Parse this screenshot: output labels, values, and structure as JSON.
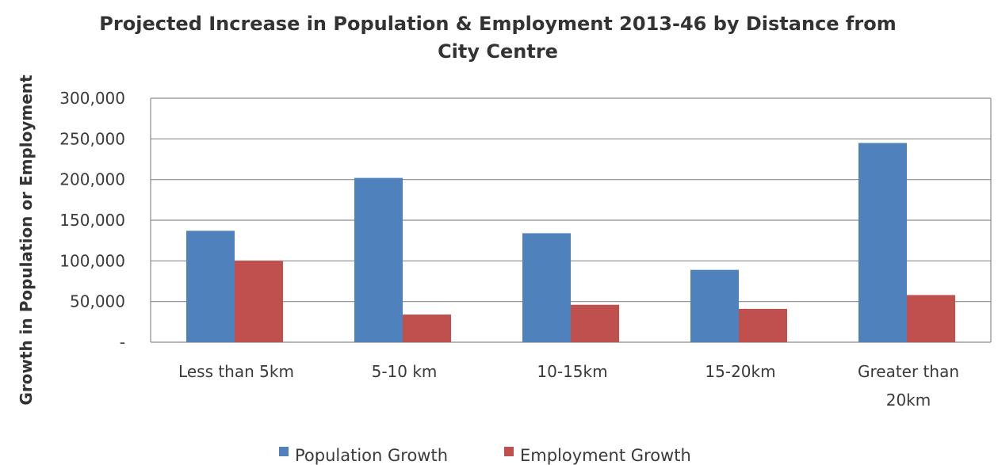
{
  "chart_data": {
    "type": "bar",
    "title": [
      "Projected Increase in Population & Employment 2013-46 by Distance from",
      "City Centre"
    ],
    "xlabel": "",
    "ylabel": "Growth in Population or Employment",
    "categories": [
      [
        "Less than 5km"
      ],
      [
        "5-10 km"
      ],
      [
        "10-15km"
      ],
      [
        "15-20km"
      ],
      [
        "Greater than",
        "20km"
      ]
    ],
    "series": [
      {
        "name": "Population Growth",
        "color": "#4f81bd",
        "values": [
          137000,
          202000,
          134000,
          89000,
          245000
        ]
      },
      {
        "name": "Employment Growth",
        "color": "#c0504d",
        "values": [
          100000,
          34000,
          46000,
          41000,
          58000
        ]
      }
    ],
    "ylim": [
      0,
      300000
    ],
    "yticks": [
      {
        "value": 0,
        "label": "-"
      },
      {
        "value": 50000,
        "label": "50,000"
      },
      {
        "value": 100000,
        "label": "100,000"
      },
      {
        "value": 150000,
        "label": "150,000"
      },
      {
        "value": 200000,
        "label": "200,000"
      },
      {
        "value": 250000,
        "label": "250,000"
      },
      {
        "value": 300000,
        "label": "300,000"
      }
    ],
    "grid": true,
    "legend": "bottom"
  }
}
